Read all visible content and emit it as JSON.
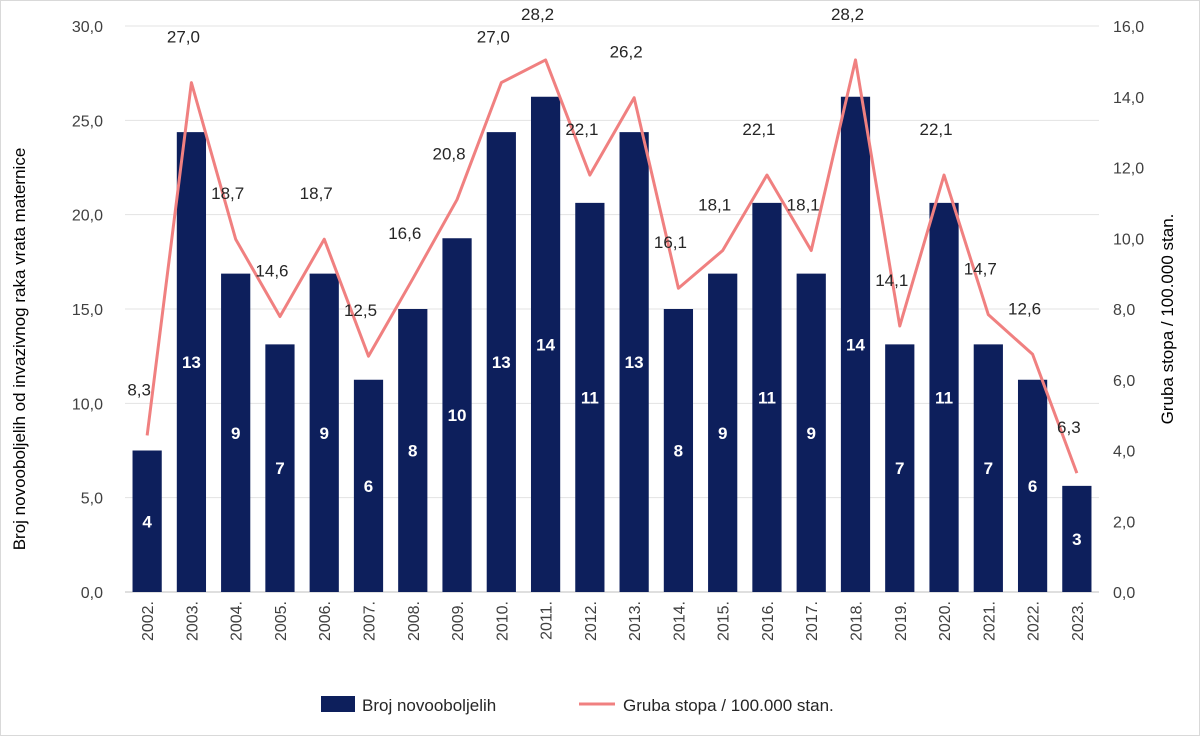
{
  "chart_data": {
    "type": "bar+line",
    "categories": [
      "2002.",
      "2003.",
      "2004.",
      "2005.",
      "2006.",
      "2007.",
      "2008.",
      "2009.",
      "2010.",
      "2011.",
      "2012.",
      "2013.",
      "2014.",
      "2015.",
      "2016.",
      "2017.",
      "2018.",
      "2019.",
      "2020.",
      "2021.",
      "2022.",
      "2023."
    ],
    "series": [
      {
        "name": "Broj novooboljelih",
        "kind": "bar",
        "axis": "right",
        "color": "#0d1f5c",
        "values": [
          4,
          13,
          9,
          7,
          9,
          6,
          8,
          10,
          13,
          14,
          11,
          13,
          8,
          9,
          11,
          9,
          14,
          7,
          11,
          7,
          6,
          3
        ],
        "labels": [
          "4",
          "13",
          "9",
          "7",
          "9",
          "6",
          "8",
          "10",
          "13",
          "14",
          "11",
          "13",
          "8",
          "9",
          "11",
          "9",
          "14",
          "7",
          "11",
          "7",
          "6",
          "3"
        ]
      },
      {
        "name": "Gruba stopa / 100.000 stan.",
        "kind": "line",
        "axis": "left",
        "color": "#f08080",
        "values": [
          8.3,
          27.0,
          18.7,
          14.6,
          18.7,
          12.5,
          16.6,
          20.8,
          27.0,
          28.2,
          22.1,
          26.2,
          16.1,
          18.1,
          22.1,
          18.1,
          28.2,
          14.1,
          22.1,
          14.7,
          12.6,
          6.3
        ],
        "labels": [
          "8,3",
          "27,0",
          "18,7",
          "14,6",
          "18,7",
          "12,5",
          "16,6",
          "20,8",
          "27,0",
          "28,2",
          "22,1",
          "26,2",
          "16,1",
          "18,1",
          "22,1",
          "18,1",
          "28,2",
          "14,1",
          "22,1",
          "14,7",
          "12,6",
          "6,3"
        ]
      }
    ],
    "left_axis": {
      "title": "Broj novooboljelih od invazivnog raka vrata maternice",
      "ylim": [
        0,
        30
      ],
      "ticks": [
        0,
        5,
        10,
        15,
        20,
        25,
        30
      ],
      "tick_labels": [
        "0,0",
        "5,0",
        "10,0",
        "15,0",
        "20,0",
        "25,0",
        "30,0"
      ]
    },
    "right_axis": {
      "title": "Gruba stopa / 100.000 stan.",
      "ylim": [
        0,
        16
      ],
      "ticks": [
        0,
        2,
        4,
        6,
        8,
        10,
        12,
        14,
        16
      ],
      "tick_labels": [
        "0,0",
        "2,0",
        "4,0",
        "6,0",
        "8,0",
        "10,0",
        "12,0",
        "14,0",
        "16,0"
      ]
    },
    "gridlines": true,
    "legend_position": "bottom",
    "legend": [
      {
        "label": "Broj novooboljelih",
        "kind": "bar"
      },
      {
        "label": "Gruba stopa / 100.000 stan.",
        "kind": "line"
      }
    ]
  }
}
